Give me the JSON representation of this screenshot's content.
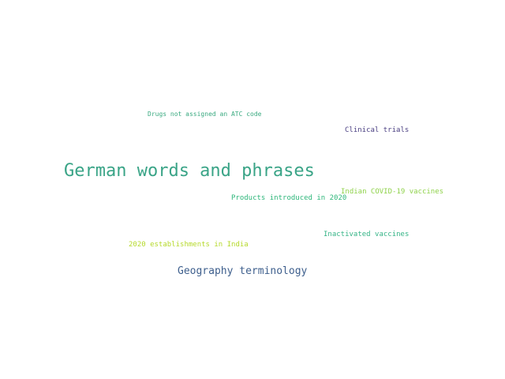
{
  "words": [
    {
      "text": "Drugs not assigned an ATC code",
      "color": "#3aaa80"
    },
    {
      "text": "Clinical trials",
      "color": "#4a3f82"
    },
    {
      "text": "German words and phrases",
      "color": "#3aa487"
    },
    {
      "text": "Indian COVID-19 vaccines",
      "color": "#8fd24a"
    },
    {
      "text": "Products introduced in 2020",
      "color": "#2db67a"
    },
    {
      "text": "Inactivated vaccines",
      "color": "#34b486"
    },
    {
      "text": "2020 establishments in India",
      "color": "#b5d92a"
    },
    {
      "text": "Geography terminology",
      "color": "#3e5f8d"
    }
  ]
}
